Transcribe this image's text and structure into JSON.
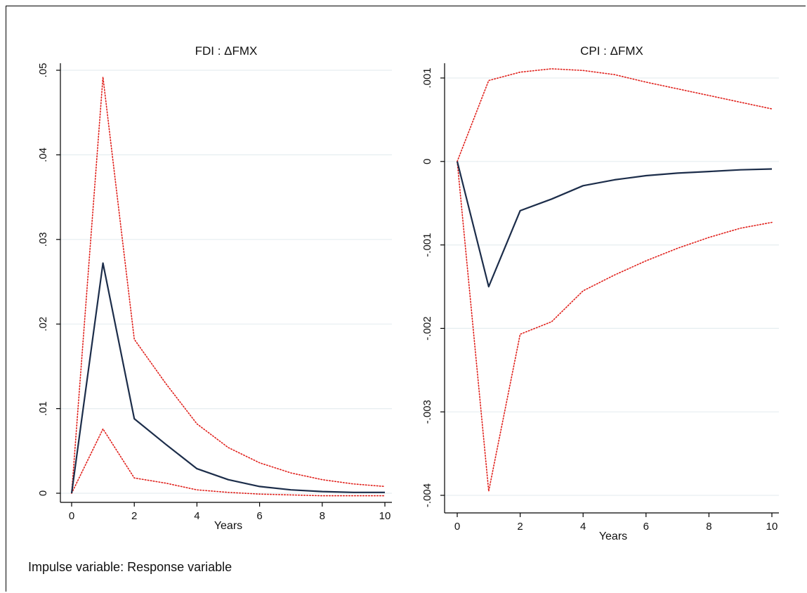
{
  "caption": "Impulse variable: Response variable",
  "colors": {
    "irf": "#1c2d4a",
    "ci": "#e0201b",
    "grid": "#e6eef0",
    "axis": "#000000"
  },
  "chart_data": [
    {
      "type": "line",
      "title": "FDI : ΔFMX",
      "xlabel": "Years",
      "ylabel": "",
      "xlim": [
        0,
        10
      ],
      "ylim": [
        0,
        0.05
      ],
      "xticks": [
        0,
        2,
        4,
        6,
        8,
        10
      ],
      "xtick_labels": [
        "0",
        "2",
        "4",
        "6",
        "8",
        "10"
      ],
      "yticks": [
        0,
        0.01,
        0.02,
        0.03,
        0.04,
        0.05
      ],
      "ytick_labels": [
        "0",
        ".01",
        ".02",
        ".03",
        ".04",
        ".05"
      ],
      "grid": true,
      "legend": "none",
      "x": [
        0,
        1,
        2,
        3,
        4,
        5,
        6,
        7,
        8,
        9,
        10
      ],
      "series": [
        {
          "role": "irf",
          "style": "solid",
          "values": [
            0,
            0.0272,
            0.0088,
            0.0058,
            0.0029,
            0.0016,
            0.0008,
            0.0004,
            0.0002,
            0.0001,
            0.0001
          ]
        },
        {
          "role": "upper",
          "style": "dotted",
          "values": [
            0,
            0.0492,
            0.0182,
            0.013,
            0.0082,
            0.0054,
            0.0036,
            0.0024,
            0.0016,
            0.0011,
            0.0008
          ]
        },
        {
          "role": "lower",
          "style": "dotted",
          "values": [
            0,
            0.0076,
            0.0018,
            0.0012,
            0.0004,
            0.0001,
            -0.0001,
            -0.0002,
            -0.0003,
            -0.0003,
            -0.0003
          ]
        }
      ]
    },
    {
      "type": "line",
      "title": "CPI : ΔFMX",
      "xlabel": "Years",
      "ylabel": "",
      "xlim": [
        0,
        10
      ],
      "ylim": [
        -0.004,
        0.001
      ],
      "xticks": [
        0,
        2,
        4,
        6,
        8,
        10
      ],
      "xtick_labels": [
        "0",
        "2",
        "4",
        "6",
        "8",
        "10"
      ],
      "yticks": [
        -0.004,
        -0.003,
        -0.002,
        -0.001,
        0,
        0.001
      ],
      "ytick_labels": [
        "-.004",
        "-.003",
        "-.002",
        "-.001",
        "0",
        ".001"
      ],
      "grid": true,
      "legend": "none",
      "x": [
        0,
        1,
        2,
        3,
        4,
        5,
        6,
        7,
        8,
        9,
        10
      ],
      "series": [
        {
          "role": "irf",
          "style": "solid",
          "values": [
            0,
            -0.0015,
            -0.00059,
            -0.00045,
            -0.00029,
            -0.00022,
            -0.00017,
            -0.00014,
            -0.00012,
            -0.0001,
            -9e-05
          ]
        },
        {
          "role": "upper",
          "style": "dotted",
          "values": [
            0,
            0.00097,
            0.00107,
            0.00111,
            0.00109,
            0.00104,
            0.00095,
            0.00087,
            0.00079,
            0.00071,
            0.00063
          ]
        },
        {
          "role": "lower",
          "style": "dotted",
          "values": [
            0,
            -0.00395,
            -0.00207,
            -0.00192,
            -0.00155,
            -0.00136,
            -0.00119,
            -0.00104,
            -0.00091,
            -0.0008,
            -0.00073
          ]
        }
      ]
    }
  ]
}
